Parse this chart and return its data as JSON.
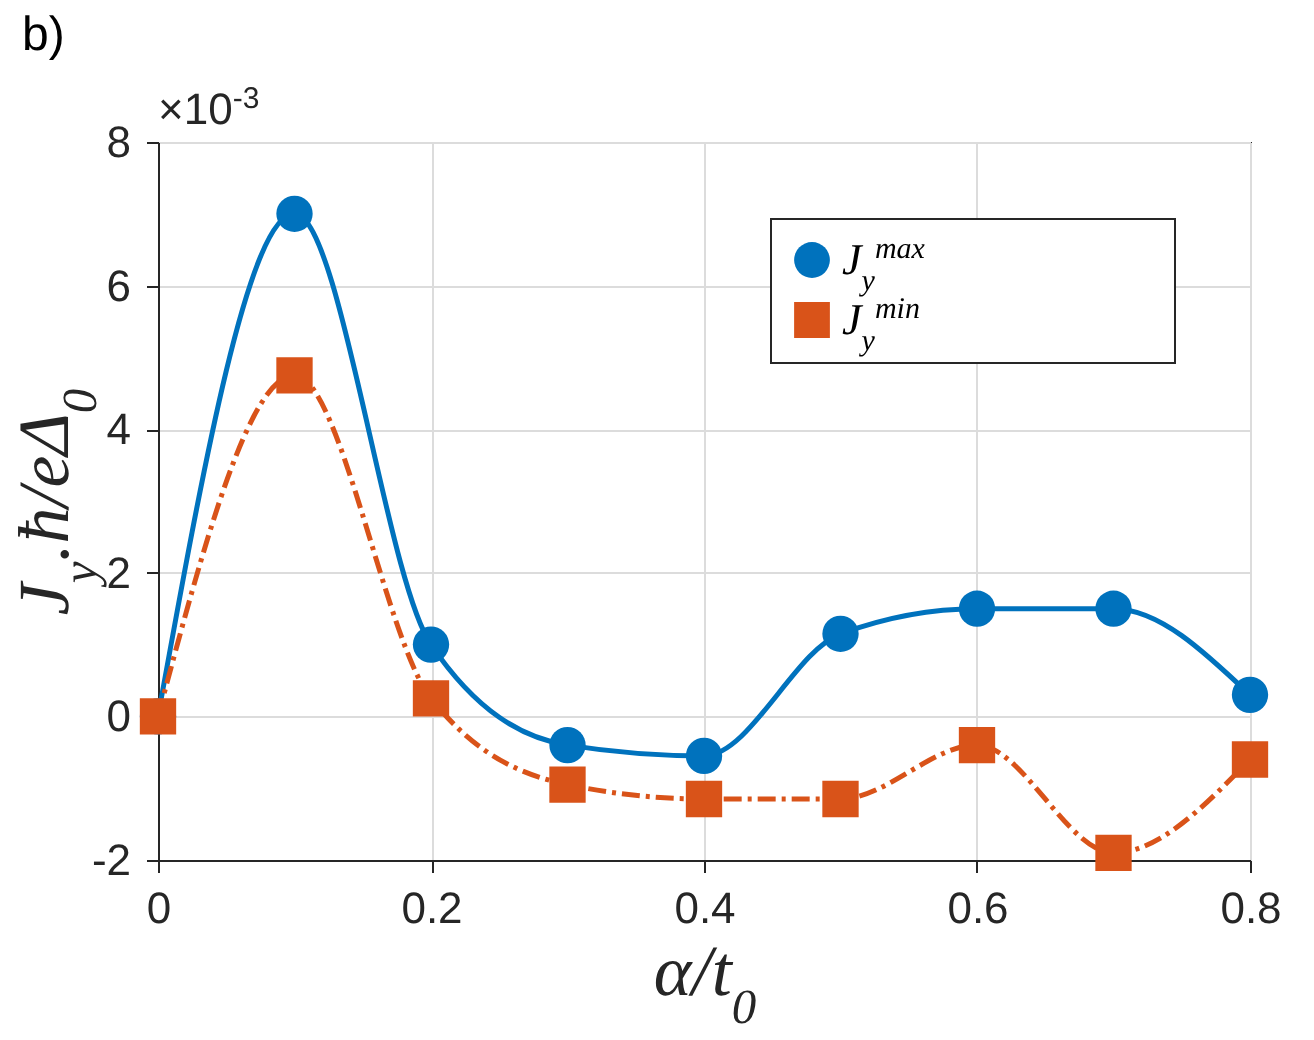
{
  "chart_data": {
    "type": "line",
    "title": "b)",
    "xlabel": "α/t$_{0}$",
    "ylabel": "J$_{y}$.ħ/eΔ$_{0}$",
    "annotations": [
      "×10$^{-3}$"
    ],
    "x": [
      0,
      0.1,
      0.2,
      0.3,
      0.4,
      0.5,
      0.6,
      0.7,
      0.8
    ],
    "series": [
      {
        "name": "J$_{y}$$^{max}$",
        "color": "#0072bd",
        "marker": "circle",
        "line_style": "solid",
        "values": [
          0,
          7.0,
          1.0,
          -0.4,
          -0.55,
          1.15,
          1.5,
          1.5,
          0.3
        ]
      },
      {
        "name": "J$_{y}$$^{min}$",
        "color": "#d95319",
        "marker": "square",
        "line_style": "dashed",
        "values": [
          0,
          4.75,
          0.25,
          -0.95,
          -1.15,
          -1.15,
          -0.4,
          -1.9,
          -0.6
        ]
      }
    ],
    "xlim": [
      0,
      0.8
    ],
    "xticks": [
      0,
      0.2,
      0.4,
      0.6,
      0.8
    ],
    "ylim": [
      -2,
      8
    ],
    "yticks": [
      -2,
      0,
      2,
      4,
      6,
      8
    ],
    "grid": true,
    "legend": "top right"
  }
}
